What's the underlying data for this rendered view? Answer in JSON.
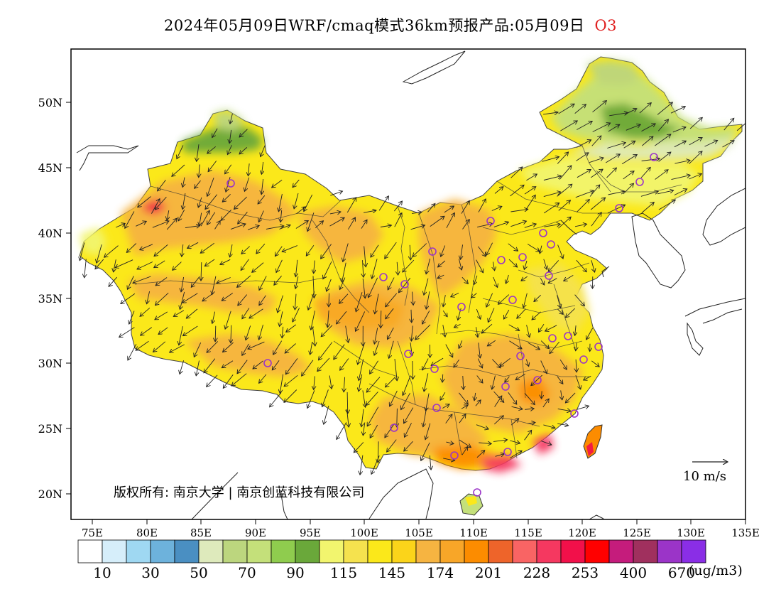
{
  "title": "2024年05月09日WRF/cmaq模式36km预报产品:05月09日",
  "species": "O3",
  "copyright": "版权所有: 南京大学 | 南京创蓝科技有限公司",
  "vector_scale_label": "10 m/s",
  "lat_labels": [
    "50N",
    "45N",
    "40N",
    "35N",
    "30N",
    "25N",
    "20N"
  ],
  "lon_labels": [
    "75E",
    "80E",
    "85E",
    "90E",
    "95E",
    "100E",
    "105E",
    "110E",
    "115E",
    "120E",
    "125E",
    "130E",
    "135E"
  ],
  "colorbar": {
    "unit": "(ug/m3)",
    "labels": [
      "10",
      "30",
      "50",
      "70",
      "90",
      "115",
      "145",
      "174",
      "201",
      "228",
      "253",
      "400",
      "670"
    ],
    "colors": [
      "#ffffff",
      "#d6eefa",
      "#9fd8f2",
      "#6db2dc",
      "#4a8fc2",
      "#deeabc",
      "#bcd67e",
      "#c4e07a",
      "#8fcc4e",
      "#6aa83a",
      "#f2f56e",
      "#f5e24e",
      "#fbe81a",
      "#fbd41a",
      "#f6b441",
      "#f8a628",
      "#fc8c00",
      "#ee642a",
      "#f96464",
      "#f53860",
      "#f2104a",
      "#ff0000",
      "#c51c7c",
      "#a0305e",
      "#9b34c8",
      "#8a2ee6"
    ]
  }
}
